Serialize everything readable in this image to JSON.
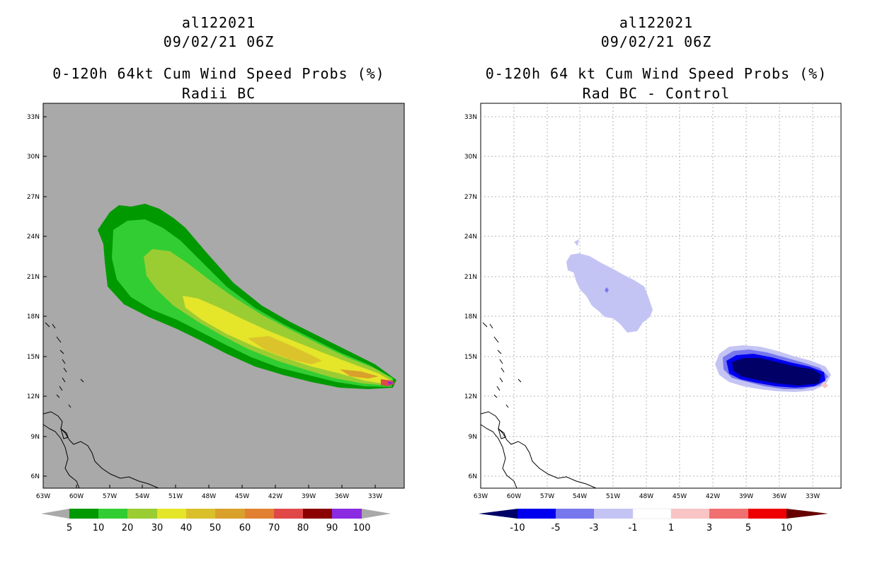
{
  "panels": [
    {
      "storm_id": "al122021",
      "datetime": "09/02/21 06Z",
      "title": "0-120h 64kt Cum Wind Speed Probs (%)",
      "subtitle": "Radii BC",
      "map_background": "#a9a9a9",
      "lat_labels": [
        "33N",
        "30N",
        "27N",
        "24N",
        "21N",
        "18N",
        "15N",
        "12N",
        "9N",
        "6N"
      ],
      "lon_labels": [
        "63W",
        "60W",
        "57W",
        "54W",
        "51W",
        "48W",
        "45W",
        "42W",
        "39W",
        "36W",
        "33W"
      ],
      "colorbar_labels": [
        "5",
        "10",
        "20",
        "30",
        "40",
        "50",
        "60",
        "70",
        "80",
        "90",
        "100"
      ],
      "colorbar_colors": [
        "#a9a9a9",
        "#009900",
        "#32cd32",
        "#9acd32",
        "#e5e52a",
        "#d9c02b",
        "#d9a02b",
        "#e08030",
        "#e04848",
        "#8b0000",
        "#8a2be2",
        "#a9a9a9"
      ]
    },
    {
      "storm_id": "al122021",
      "datetime": "09/02/21 06Z",
      "title": "0-120h 64 kt Cum Wind Speed Probs (%)",
      "subtitle": "Rad BC - Control",
      "map_background": "#ffffff",
      "lat_labels": [
        "33N",
        "30N",
        "27N",
        "24N",
        "21N",
        "18N",
        "15N",
        "12N",
        "9N",
        "6N"
      ],
      "lon_labels": [
        "63W",
        "60W",
        "57W",
        "54W",
        "51W",
        "48W",
        "45W",
        "42W",
        "39W",
        "36W",
        "33W"
      ],
      "colorbar_labels": [
        "-10",
        "-5",
        "-3",
        "-1",
        "1",
        "3",
        "5",
        "10"
      ],
      "colorbar_colors": [
        "#000066",
        "#0000ee",
        "#7777ee",
        "#c4c4f4",
        "#ffffff",
        "#f8c4c4",
        "#f07070",
        "#ee0000",
        "#660000"
      ]
    }
  ]
}
